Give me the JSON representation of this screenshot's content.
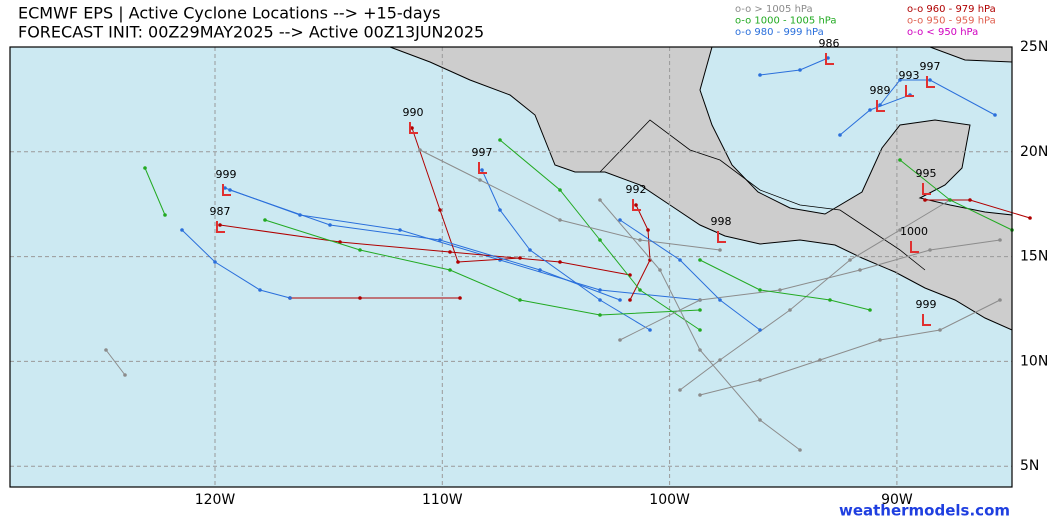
{
  "header": {
    "title": "ECMWF EPS | Active Cyclone Locations --> +15-days",
    "subtitle": "FORECAST INIT: 00Z29MAY2025 --> Active 00Z13JUN2025"
  },
  "legend": [
    {
      "label": "o-o > 1005 hPa",
      "color": "#8c8c8c"
    },
    {
      "label": "o-o 1000 - 1005 hPa",
      "color": "#22aa22"
    },
    {
      "label": "o-o 980 - 999 hPa",
      "color": "#2a6fdb"
    },
    {
      "label": "o-o 960 - 979 hPa",
      "color": "#b00000"
    },
    {
      "label": "o-o 950 - 959 hPa",
      "color": "#e06050"
    },
    {
      "label": "o-o < 950 hPa",
      "color": "#d000c0"
    }
  ],
  "map": {
    "lon_ticks": [
      "120W",
      "110W",
      "100W",
      "90W"
    ],
    "lat_ticks": [
      "25N",
      "20N",
      "15N",
      "10N",
      "5N"
    ],
    "storm_labels": [
      "986",
      "993",
      "997",
      "989",
      "990",
      "997",
      "999",
      "987",
      "992",
      "998",
      "995",
      "1000",
      "999"
    ]
  },
  "watermark": "weathermodels.com"
}
